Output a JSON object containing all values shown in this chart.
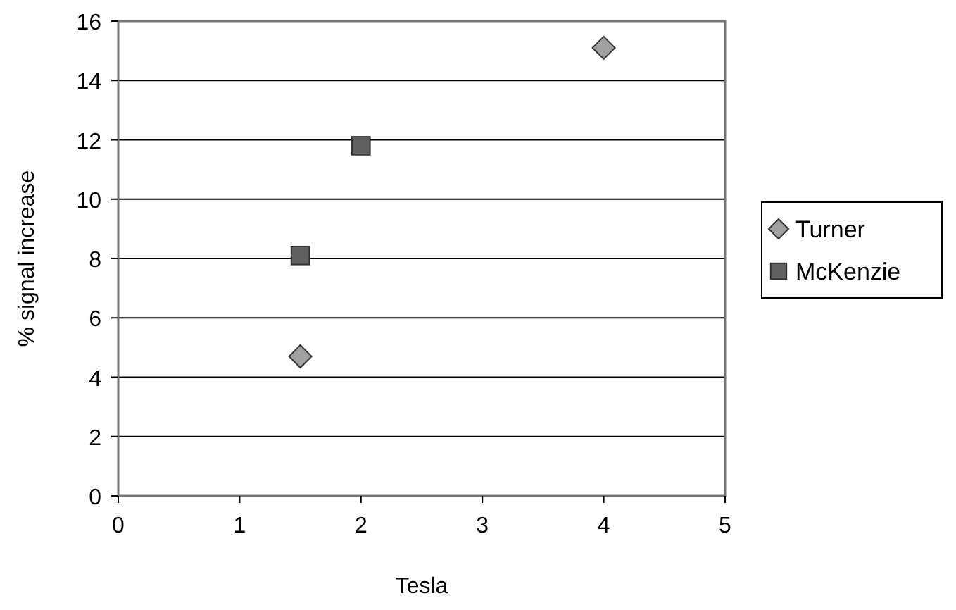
{
  "chart_data": {
    "type": "scatter",
    "xlabel": "Tesla",
    "ylabel": "% signal increase",
    "xlim": [
      0,
      5
    ],
    "xticks": [
      0,
      1,
      2,
      3,
      4,
      5
    ],
    "ylim": [
      0,
      16
    ],
    "yticks": [
      0,
      2,
      4,
      6,
      8,
      10,
      12,
      14,
      16
    ],
    "grid": "y",
    "legend": "right",
    "series": [
      {
        "name": "Turner",
        "color": "#a0a0a0",
        "marker": "diamond",
        "x": [
          1.5,
          4
        ],
        "values": [
          4.7,
          15.1
        ]
      },
      {
        "name": "McKenzie",
        "color": "#606060",
        "marker": "square",
        "x": [
          1.5,
          2
        ],
        "values": [
          8.1,
          11.8
        ]
      }
    ]
  }
}
